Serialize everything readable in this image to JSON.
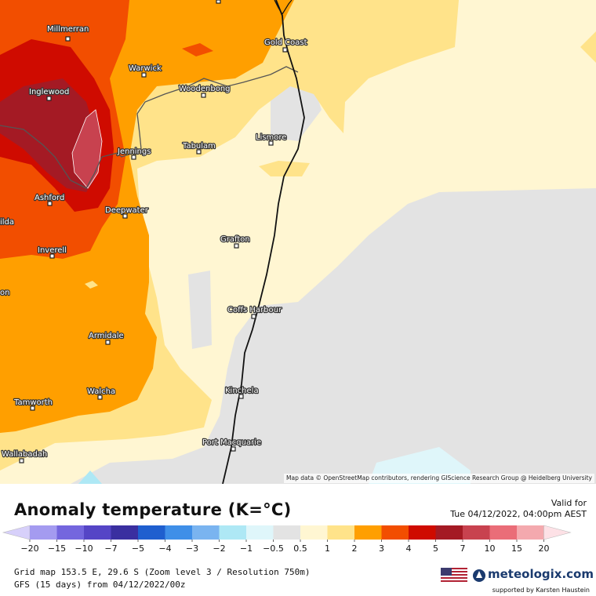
{
  "map": {
    "attribution": "Map data © OpenStreetMap contributors, rendering GIScience Research Group @ Heidelberg University",
    "cities": [
      {
        "name": "Millmerran"
      },
      {
        "name": "Gold Coast"
      },
      {
        "name": "Warwick"
      },
      {
        "name": "Woodenbong"
      },
      {
        "name": "Inglewood"
      },
      {
        "name": "Tabulam"
      },
      {
        "name": "Lismore"
      },
      {
        "name": "Jennings"
      },
      {
        "name": "Ashford"
      },
      {
        "name": "Deepwater"
      },
      {
        "name": "Grafton"
      },
      {
        "name": "Inverell"
      },
      {
        "name": "Coffs Harbour"
      },
      {
        "name": "Armidale"
      },
      {
        "name": "Kinchela"
      },
      {
        "name": "Walcha"
      },
      {
        "name": "Tamworth"
      },
      {
        "name": "Port Macquarie"
      },
      {
        "name": "Wallabadah"
      },
      {
        "name": "ilda"
      },
      {
        "name": "on"
      }
    ]
  },
  "legend": {
    "title": "Anomaly temperature (K=°C)",
    "valid_label": "Valid for",
    "valid_time": "Tue 04/12/2022, 04:00pm AEST",
    "ticks": [
      "−20",
      "−15",
      "−10",
      "−7",
      "−5",
      "−4",
      "−3",
      "−2",
      "−1",
      "−0.5",
      "0.5",
      "1",
      "2",
      "3",
      "4",
      "5",
      "7",
      "10",
      "15",
      "20"
    ],
    "colors": [
      "#a49bf0",
      "#7466de",
      "#5545c6",
      "#3a2fa0",
      "#1f5fcf",
      "#3f8fe8",
      "#7ab4f0",
      "#aee8f5",
      "#dff6fa",
      "#e3e3e3",
      "#fff6d2",
      "#ffe38a",
      "#ff9f00",
      "#f24e00",
      "#cf0b00",
      "#a41a24",
      "#c8424f",
      "#ea6d78",
      "#f4a9ae"
    ],
    "low_cap_color": "#d7d0fa",
    "high_cap_color": "#fde1e6"
  },
  "info": {
    "line1": "Grid map 153.5 E, 29.6 S (Zoom level 3 / Resolution 750m)",
    "line2": "GFS (15 days) from 04/12/2022/00z"
  },
  "brand": {
    "name": "meteologix.com",
    "support": "supported by Karsten Haustein"
  }
}
